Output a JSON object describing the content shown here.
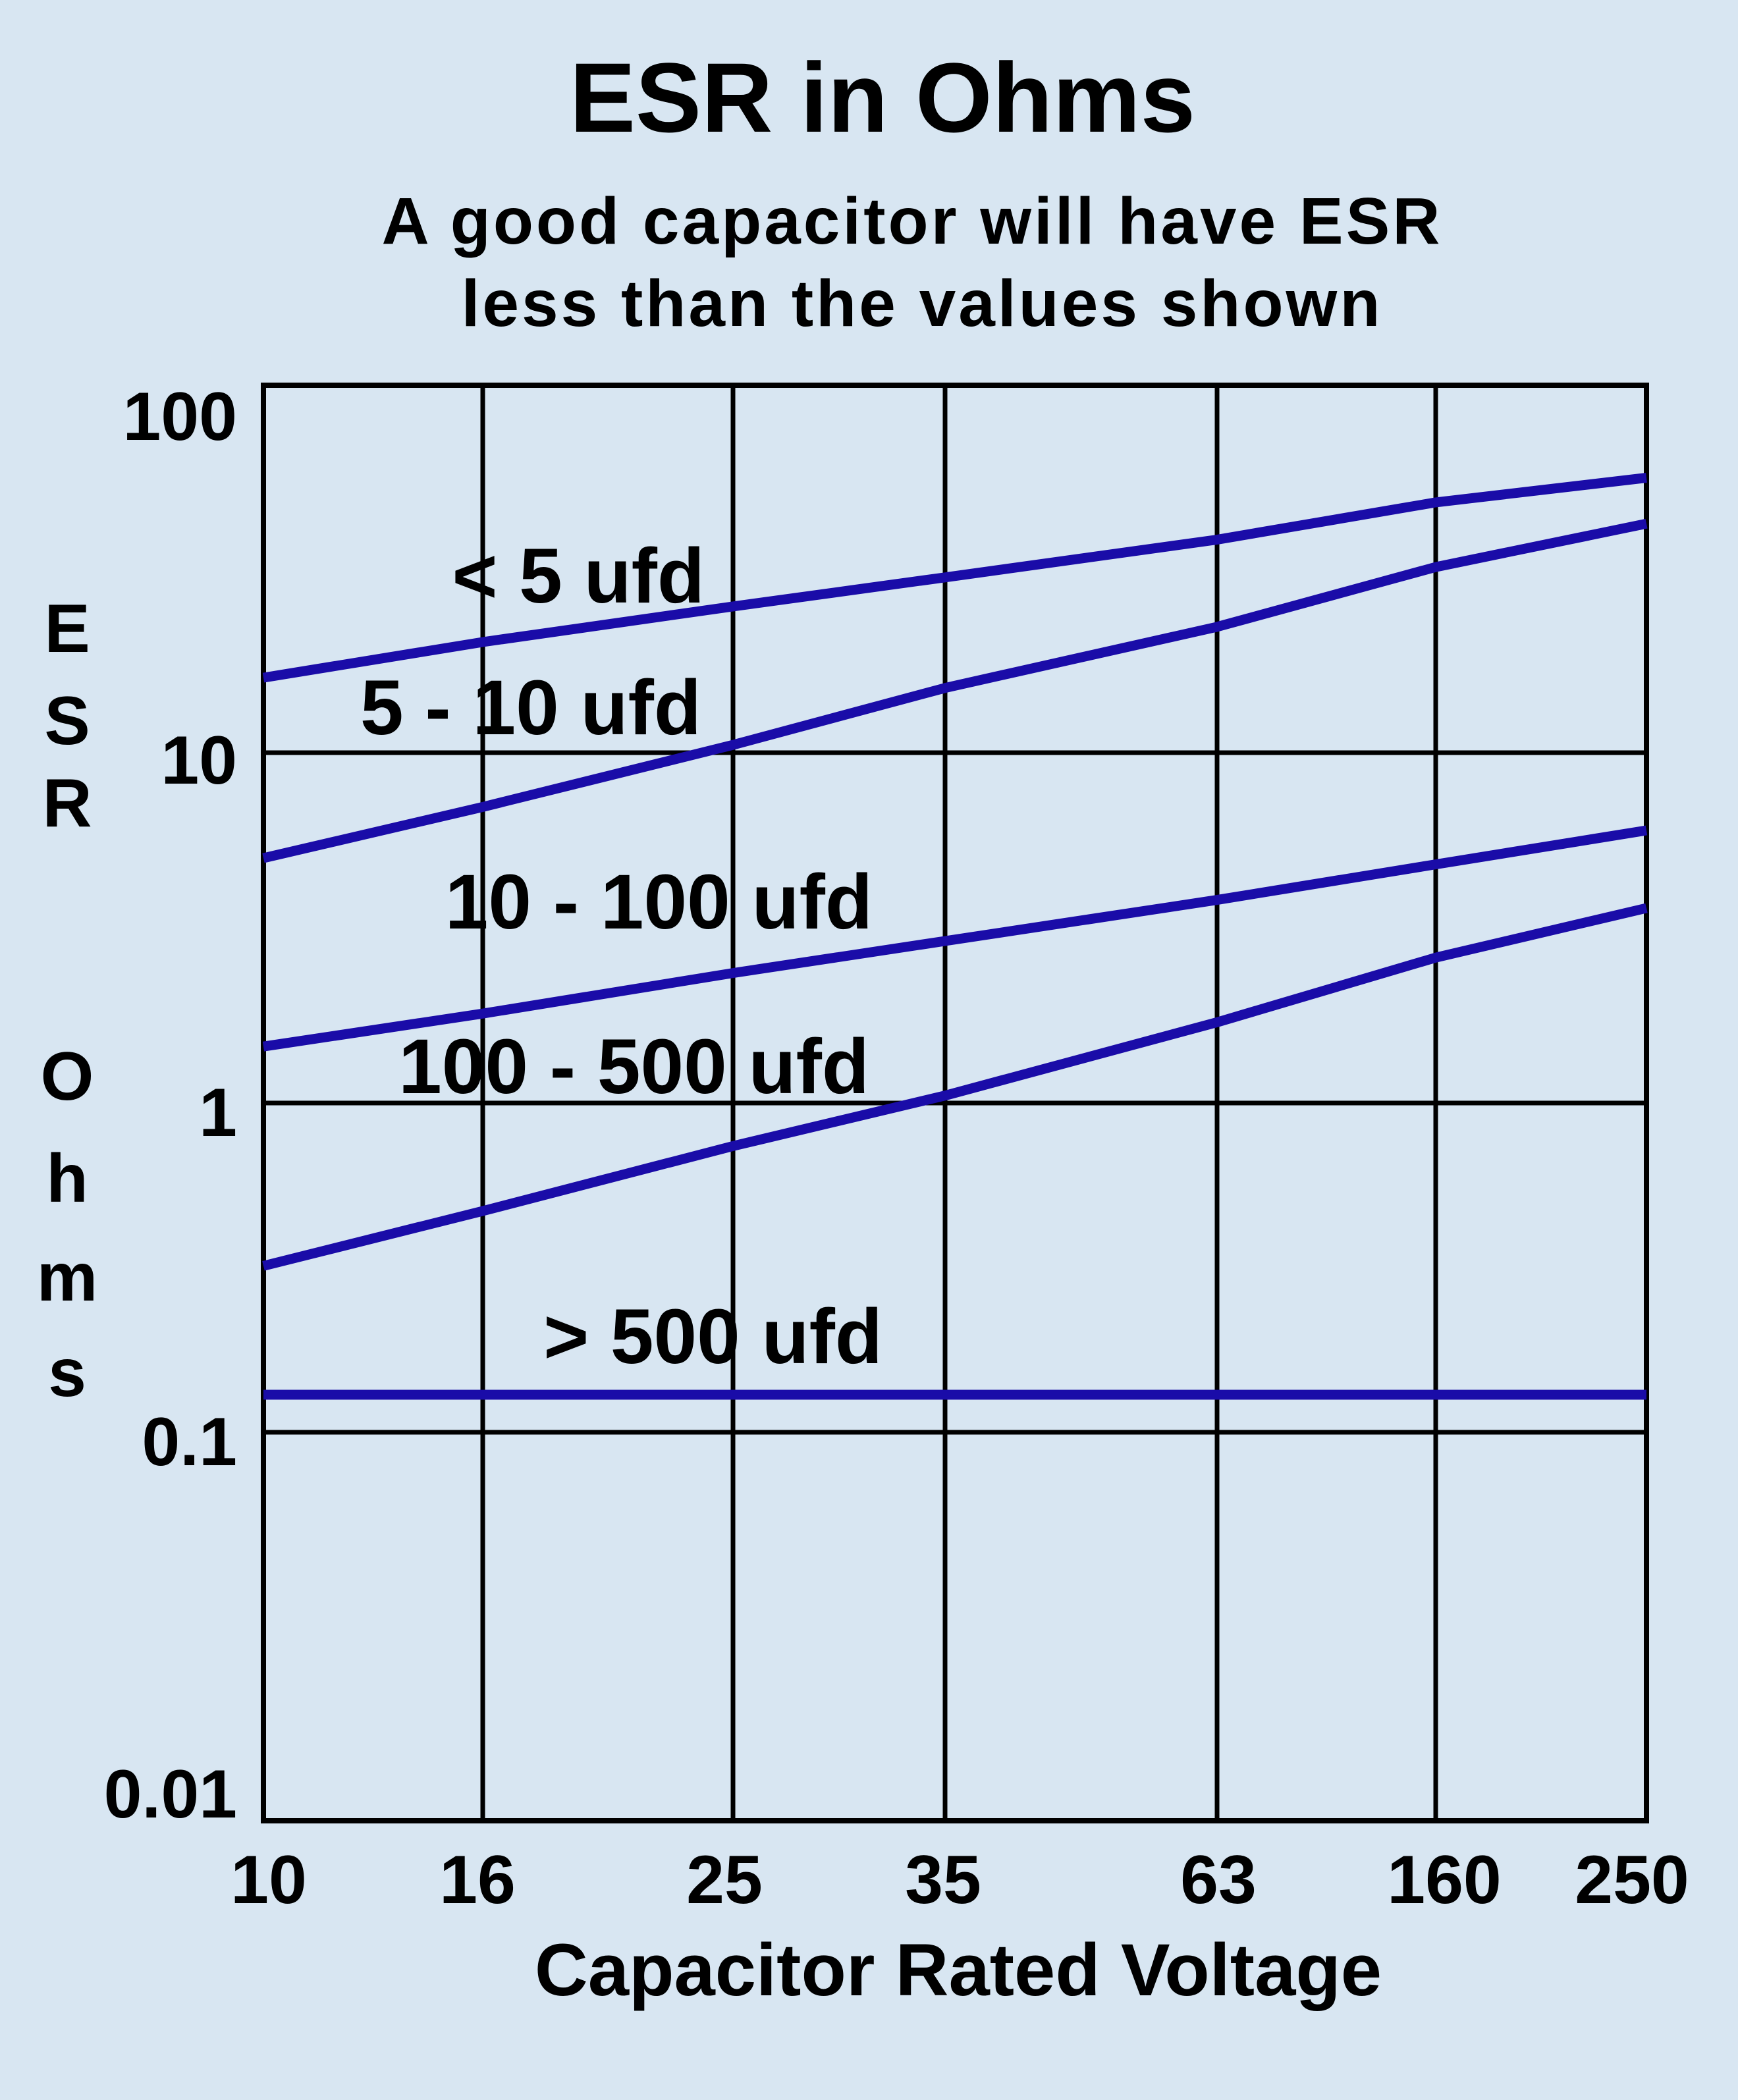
{
  "chart_data": {
    "type": "line",
    "title": "ESR in Ohms",
    "subtitle_lines": [
      "A good capacitor will have ESR",
      "less than the values shown"
    ],
    "xlabel": "Capacitor Rated Voltage",
    "ylabel_lines": [
      "E",
      "S",
      "R",
      "",
      "O",
      "h",
      "m",
      "s"
    ],
    "x_categories": [
      "10",
      "16",
      "25",
      "35",
      "63",
      "160",
      "250"
    ],
    "y_scale": "log",
    "ylim": [
      0.01,
      100
    ],
    "y_ticks": [
      "100",
      "10",
      "1",
      "0.1",
      "0.01"
    ],
    "grid": true,
    "line_color": "#1a0ca8",
    "series": [
      {
        "name": "< 5 ufd",
        "values": [
          16,
          20,
          25,
          30,
          38,
          48,
          56
        ]
      },
      {
        "name": "5 - 10 ufd",
        "values": [
          5,
          7,
          10.5,
          15,
          22,
          32,
          42
        ]
      },
      {
        "name": "10 - 100 ufd",
        "values": [
          1.45,
          1.8,
          2.35,
          2.9,
          3.8,
          4.8,
          6
        ]
      },
      {
        "name": "100 - 500 ufd",
        "values": [
          0.32,
          0.47,
          0.74,
          1.05,
          1.7,
          2.6,
          3.6
        ]
      },
      {
        "name": "> 500 ufd",
        "values": [
          0.13,
          0.13,
          0.13,
          0.13,
          0.13,
          0.13,
          0.13
        ]
      }
    ]
  }
}
